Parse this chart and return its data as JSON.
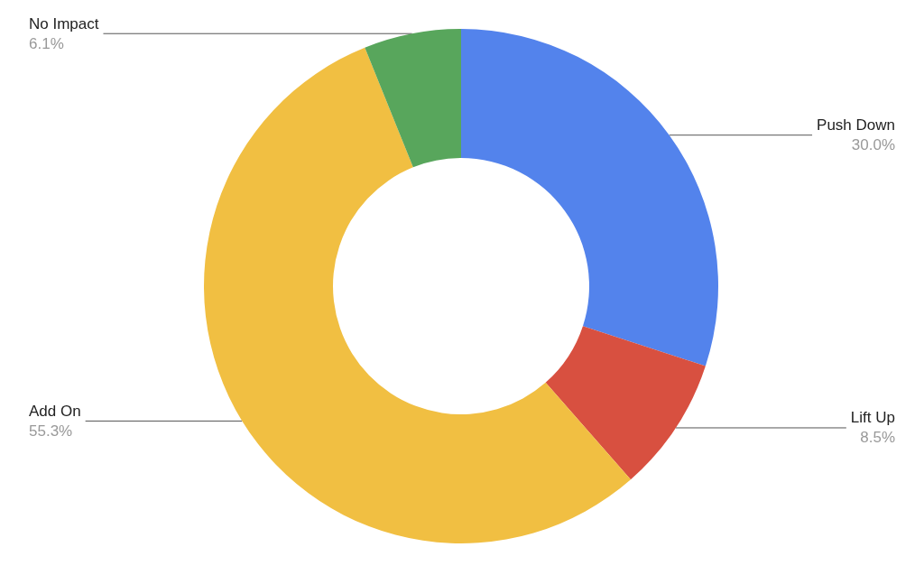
{
  "chart_data": {
    "type": "donut",
    "categories": [
      "Push Down",
      "Lift Up",
      "Add On",
      "No Impact"
    ],
    "values": [
      30.0,
      8.5,
      55.3,
      6.1
    ],
    "colors": [
      "#5383ec",
      "#d85040",
      "#f1bf42",
      "#58a65c"
    ],
    "value_labels": [
      "30.0%",
      "8.5%",
      "55.3%",
      "6.1%"
    ],
    "legend": false
  }
}
